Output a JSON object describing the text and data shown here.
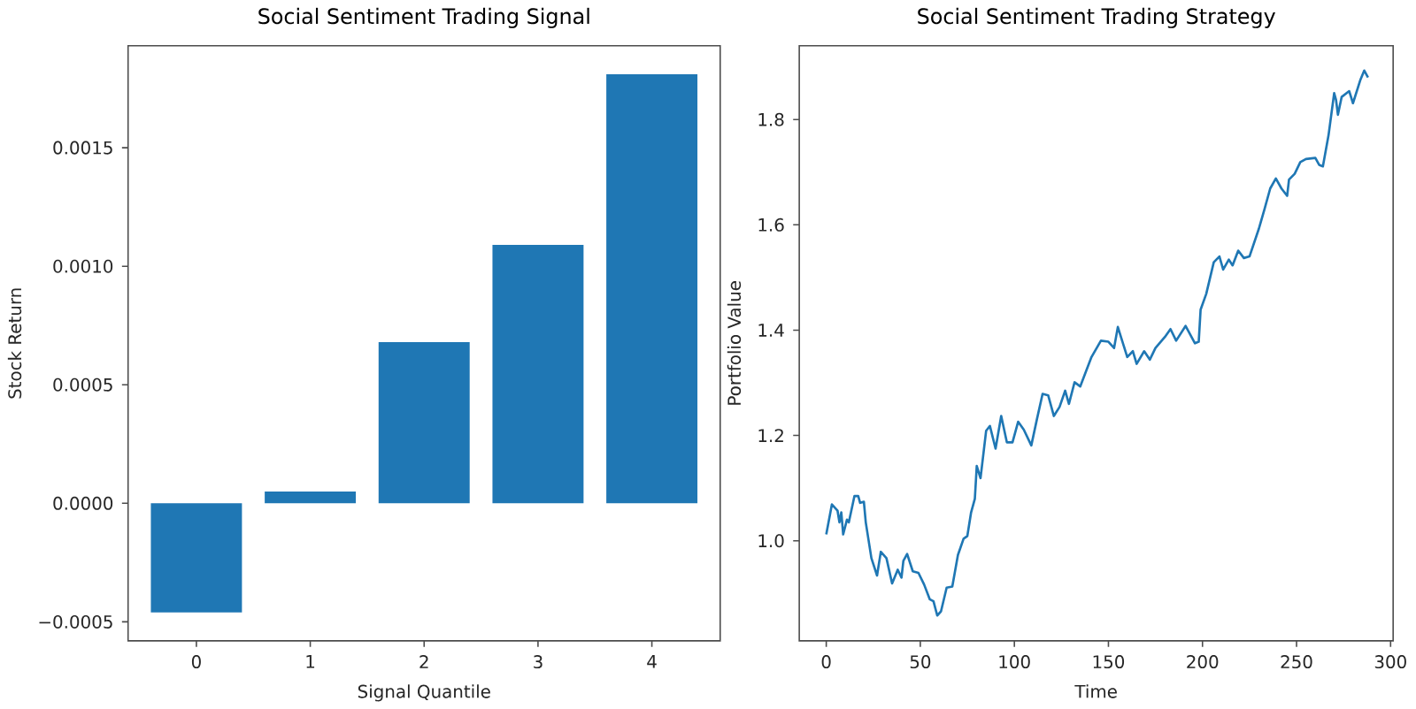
{
  "chart_data": [
    {
      "type": "bar",
      "title": "Social Sentiment Trading Signal",
      "xlabel": "Signal Quantile",
      "ylabel": "Stock Return",
      "categories": [
        "0",
        "1",
        "2",
        "3",
        "4"
      ],
      "values": [
        -0.00046,
        5e-05,
        0.00068,
        0.00109,
        0.00181
      ],
      "color": "#1f77b4",
      "ylim": [
        -0.00058,
        0.00193
      ],
      "yticks": [
        {
          "value": -0.0005,
          "label": "−0.0005"
        },
        {
          "value": 0,
          "label": "0.0000"
        },
        {
          "value": 0.0005,
          "label": "0.0005"
        },
        {
          "value": 0.001,
          "label": "0.0010"
        },
        {
          "value": 0.0015,
          "label": "0.0015"
        }
      ]
    },
    {
      "type": "line",
      "title": "Social Sentiment Trading Strategy",
      "xlabel": "Time",
      "ylabel": "Portfolio Value",
      "xlim": [
        -14.35,
        301.35
      ],
      "xticks": [
        0,
        50,
        100,
        150,
        200,
        250,
        300
      ],
      "ylim": [
        0.81,
        1.94
      ],
      "yticks": [
        {
          "value": 1.0,
          "label": "1.0"
        },
        1.2,
        1.4,
        1.6,
        1.8
      ],
      "x": [
        0,
        3,
        6,
        7,
        8,
        9,
        11,
        12,
        15,
        17,
        18,
        20,
        21,
        24,
        27,
        29,
        32,
        35,
        38,
        40,
        41,
        43,
        46,
        49,
        52,
        55,
        57,
        59,
        61,
        64,
        67,
        70,
        73,
        75,
        77,
        79,
        80,
        82,
        85,
        87,
        90,
        93,
        96,
        99,
        102,
        105,
        109,
        112,
        115,
        118,
        121,
        124,
        127,
        129,
        132,
        135,
        138,
        141,
        146,
        150,
        153,
        155,
        160,
        163,
        165,
        169,
        172,
        175,
        180,
        183,
        186,
        191,
        196,
        198,
        199,
        202,
        206,
        209,
        211,
        214,
        216,
        219,
        222,
        225,
        230,
        233,
        236,
        239,
        242,
        245,
        246,
        249,
        252,
        255,
        260,
        262,
        264,
        267,
        270,
        271,
        272,
        274,
        278,
        280,
        284,
        286,
        288
      ],
      "series": [
        {
          "color": "#1f77b4",
          "values": [
            1.012,
            1.069,
            1.057,
            1.035,
            1.054,
            1.012,
            1.04,
            1.035,
            1.085,
            1.085,
            1.072,
            1.074,
            1.035,
            0.967,
            0.934,
            0.979,
            0.967,
            0.919,
            0.945,
            0.93,
            0.962,
            0.975,
            0.942,
            0.939,
            0.917,
            0.889,
            0.885,
            0.858,
            0.866,
            0.911,
            0.913,
            0.973,
            1.004,
            1.009,
            1.054,
            1.08,
            1.142,
            1.119,
            1.209,
            1.218,
            1.175,
            1.237,
            1.187,
            1.187,
            1.226,
            1.211,
            1.181,
            1.231,
            1.279,
            1.276,
            1.237,
            1.254,
            1.285,
            1.26,
            1.301,
            1.293,
            1.321,
            1.349,
            1.38,
            1.378,
            1.366,
            1.406,
            1.349,
            1.36,
            1.336,
            1.36,
            1.344,
            1.366,
            1.387,
            1.402,
            1.38,
            1.408,
            1.375,
            1.378,
            1.439,
            1.469,
            1.529,
            1.54,
            1.515,
            1.534,
            1.523,
            1.551,
            1.537,
            1.54,
            1.593,
            1.63,
            1.669,
            1.688,
            1.669,
            1.655,
            1.686,
            1.697,
            1.719,
            1.725,
            1.727,
            1.714,
            1.711,
            1.77,
            1.85,
            1.837,
            1.809,
            1.843,
            1.854,
            1.831,
            1.876,
            1.893,
            1.88
          ]
        }
      ]
    }
  ]
}
